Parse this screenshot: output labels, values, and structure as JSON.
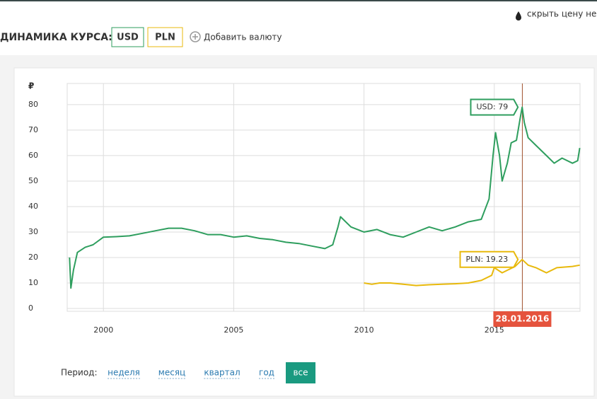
{
  "header": {
    "oil_toggle": "скрыть цену неф",
    "title": "ДИНАМИКА КУРСА:",
    "add_currency": "Добавить валюту"
  },
  "chart_data": {
    "type": "line",
    "y_label": "₽",
    "xlim": [
      1998.61,
      2018.29
    ],
    "ylim": [
      -1.1,
      88.3
    ],
    "xticks": [
      2000,
      2005,
      2010,
      2015
    ],
    "yticks": [
      0,
      10,
      20,
      30,
      40,
      50,
      60,
      70,
      80
    ],
    "grid": true,
    "series": [
      {
        "name": "USD",
        "color": "#2e9e5e",
        "x": [
          1998.7,
          1998.75,
          1998.85,
          1999.0,
          1999.3,
          1999.6,
          2000.0,
          2000.5,
          2001.0,
          2001.5,
          2002.0,
          2002.5,
          2003.0,
          2003.5,
          2004.0,
          2004.5,
          2005.0,
          2005.5,
          2006.0,
          2006.5,
          2007.0,
          2007.5,
          2008.0,
          2008.5,
          2008.8,
          2009.0,
          2009.1,
          2009.5,
          2010.0,
          2010.5,
          2011.0,
          2011.5,
          2012.0,
          2012.5,
          2013.0,
          2013.5,
          2014.0,
          2014.5,
          2014.8,
          2014.95,
          2015.05,
          2015.2,
          2015.3,
          2015.5,
          2015.65,
          2015.85,
          2016.0,
          2016.07,
          2016.15,
          2016.3,
          2016.6,
          2017.0,
          2017.3,
          2017.6,
          2018.0,
          2018.2,
          2018.28
        ],
        "values": [
          20,
          8,
          15,
          22,
          24,
          25,
          28,
          28.2,
          28.5,
          29.5,
          30.5,
          31.5,
          31.5,
          30.5,
          29,
          29,
          28,
          28.5,
          27.5,
          27,
          26,
          25.5,
          24.5,
          23.5,
          25,
          32,
          36,
          32,
          30,
          31,
          29,
          28,
          30,
          32,
          30.5,
          32,
          34,
          35,
          43,
          60,
          69,
          60,
          50,
          57,
          65,
          66,
          75,
          79,
          73,
          67,
          64,
          60,
          57,
          59,
          57,
          58,
          63
        ]
      },
      {
        "name": "PLN",
        "color": "#e8b90c",
        "x": [
          2010.0,
          2010.3,
          2010.6,
          2011.0,
          2011.5,
          2012.0,
          2012.5,
          2013.0,
          2013.5,
          2014.0,
          2014.5,
          2014.9,
          2015.0,
          2015.3,
          2015.5,
          2015.8,
          2016.07,
          2016.3,
          2016.6,
          2017.0,
          2017.4,
          2018.0,
          2018.28
        ],
        "values": [
          10,
          9.5,
          10,
          10,
          9.5,
          9,
          9.3,
          9.5,
          9.7,
          10,
          11,
          13,
          16,
          14,
          15,
          16.5,
          19.23,
          17,
          16,
          14,
          16,
          16.5,
          17
        ]
      }
    ],
    "tooltips": [
      {
        "label": "USD: 79",
        "x": 2016.07,
        "y": 79
      },
      {
        "label": "PLN: 19.23",
        "x": 2016.07,
        "y": 19.23
      }
    ],
    "cursor": {
      "label": "28.01.2016",
      "x": 2016.076
    }
  },
  "period": {
    "label": "Период:",
    "options": [
      "неделя",
      "месяц",
      "квартал",
      "год",
      "все"
    ],
    "active": 4
  }
}
